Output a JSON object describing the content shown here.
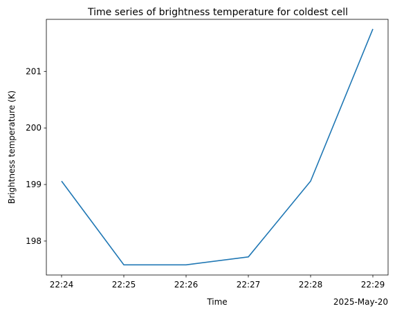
{
  "chart_data": {
    "type": "line",
    "title": "Time series of brightness temperature for coldest cell",
    "xlabel": "Time",
    "ylabel": "Brightness temperature (K)",
    "x_offset_label": "2025-May-20",
    "x": [
      "22:24",
      "22:25",
      "22:26",
      "22:27",
      "22:28",
      "22:29"
    ],
    "x_ticks": [
      "22:24",
      "22:25",
      "22:26",
      "22:27",
      "22:28",
      "22:29"
    ],
    "y_ticks": [
      198,
      199,
      200,
      201
    ],
    "ylim": [
      197.4,
      201.92
    ],
    "grid": false,
    "series": [
      {
        "values": [
          199.06,
          197.58,
          197.58,
          197.72,
          199.06,
          201.75
        ],
        "color": "#1f77b4"
      }
    ]
  }
}
